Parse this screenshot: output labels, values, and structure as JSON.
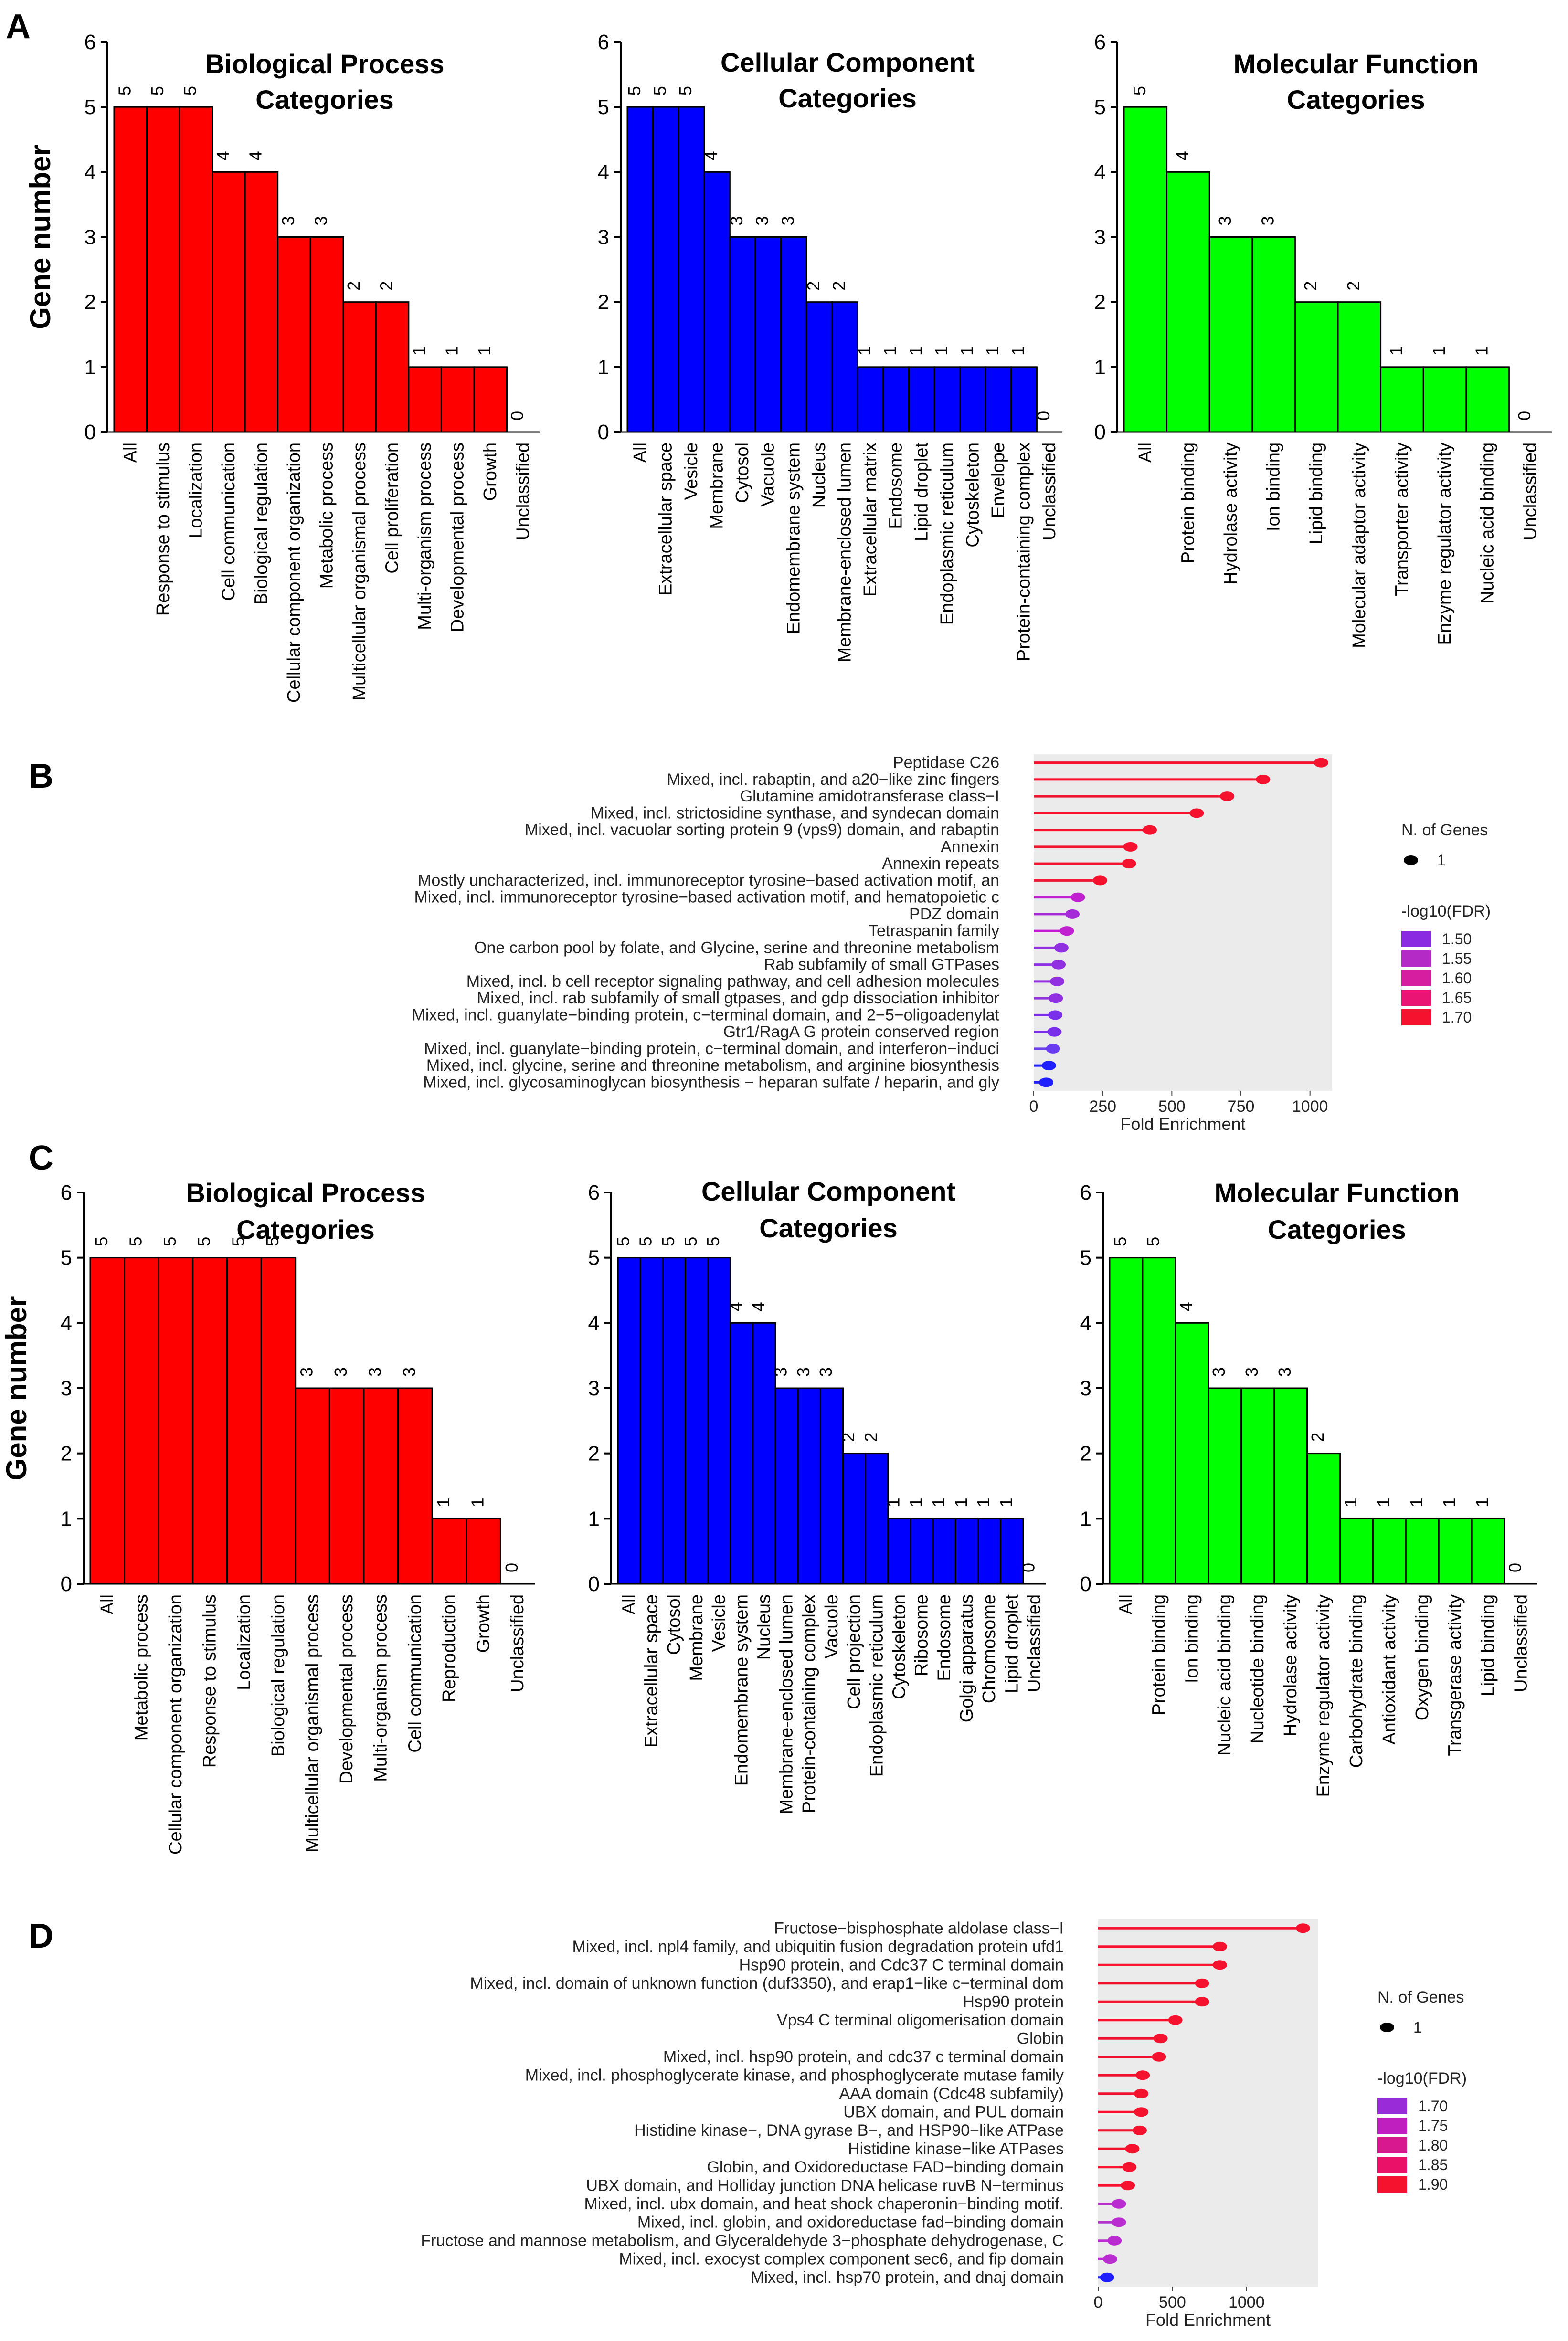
{
  "panels": {
    "A": {
      "letter": "A"
    },
    "B": {
      "letter": "B"
    },
    "C": {
      "letter": "C"
    },
    "D": {
      "letter": "D"
    }
  },
  "chart_data": [
    {
      "id": "A1",
      "type": "bar",
      "panel": "A",
      "color": "#ff0000",
      "title": [
        "Biological Process",
        "Categories"
      ],
      "ylabel": "Gene number",
      "ylim": [
        0,
        6
      ],
      "yticks": [
        0,
        1,
        2,
        3,
        4,
        5,
        6
      ],
      "categories": [
        "All",
        "Response to stimulus",
        "Localization",
        "Cell communication",
        "Biological regulation",
        "Cellular component organization",
        "Metabolic process",
        "Multicellular organismal process",
        "Cell proliferation",
        "Multi-organism process",
        "Developmental process",
        "Growth",
        "Unclassified"
      ],
      "values": [
        5,
        5,
        5,
        4,
        4,
        3,
        3,
        2,
        2,
        1,
        1,
        1,
        0
      ]
    },
    {
      "id": "A2",
      "type": "bar",
      "panel": "A",
      "color": "#0000ff",
      "title": [
        "Cellular Component",
        "Categories"
      ],
      "ylabel": "",
      "ylim": [
        0,
        6
      ],
      "yticks": [
        0,
        1,
        2,
        3,
        4,
        5,
        6
      ],
      "categories": [
        "All",
        "Extracellular space",
        "Vesicle",
        "Membrane",
        "Cytosol",
        "Vacuole",
        "Endomembrane system",
        "Nucleus",
        "Membrane-enclosed lumen",
        "Extracellular matrix",
        "Endosome",
        "Lipid droplet",
        "Endoplasmic reticulum",
        "Cytoskeleton",
        "Envelope",
        "Protein-containing complex",
        "Unclassified"
      ],
      "values": [
        5,
        5,
        5,
        4,
        3,
        3,
        3,
        2,
        2,
        1,
        1,
        1,
        1,
        1,
        1,
        1,
        0
      ]
    },
    {
      "id": "A3",
      "type": "bar",
      "panel": "A",
      "color": "#00ff00",
      "title": [
        "Molecular Function",
        "Categories"
      ],
      "ylabel": "",
      "ylim": [
        0,
        6
      ],
      "yticks": [
        0,
        1,
        2,
        3,
        4,
        5,
        6
      ],
      "categories": [
        "All",
        "Protein binding",
        "Hydrolase activity",
        "Ion binding",
        "Lipid binding",
        "Molecular adaptor activity",
        "Transporter activity",
        "Enzyme regulator activity",
        "Nucleic acid binding",
        "Unclassified"
      ],
      "values": [
        5,
        4,
        3,
        3,
        2,
        2,
        1,
        1,
        1,
        0
      ]
    },
    {
      "id": "B",
      "type": "lollipop",
      "panel": "B",
      "xlabel": "Fold Enrichment",
      "xlim": [
        0,
        1080
      ],
      "xticks": [
        0,
        250,
        500,
        750,
        1000
      ],
      "legend_size_title": "N. of Genes",
      "legend_size_label": "1",
      "legend_color_title": "-log10(FDR)",
      "legend_color_labels": [
        "1.50",
        "1.55",
        "1.60",
        "1.65",
        "1.70"
      ],
      "legend_colors": [
        "#8a2be2",
        "#b32ac6",
        "#d61fa0",
        "#ea1474",
        "#f5122f"
      ],
      "labels": [
        "Peptidase C26",
        "Mixed, incl. rabaptin, and a20−like zinc fingers",
        "Glutamine amidotransferase class−I",
        "Mixed, incl. strictosidine synthase, and syndecan domain",
        "Mixed, incl. vacuolar sorting protein 9 (vps9) domain, and rabaptin",
        "Annexin",
        "Annexin repeats",
        "Mostly uncharacterized, incl. immunoreceptor tyrosine−based activation motif, an",
        "Mixed, incl. immunoreceptor tyrosine−based activation motif, and hematopoietic c",
        "PDZ domain",
        "Tetraspanin family",
        "One carbon pool by folate, and Glycine, serine and threonine metabolism",
        "Rab subfamily of small GTPases",
        "Mixed, incl. b cell receptor signaling pathway, and cell adhesion molecules",
        "Mixed, incl. rab subfamily of small gtpases, and gdp dissociation inhibitor",
        "Mixed, incl. guanylate−binding protein, c−terminal domain, and 2−5−oligoadenylat",
        "Gtr1/RagA G protein conserved region",
        "Mixed, incl. guanylate−binding protein, c−terminal domain, and interferon−induci",
        "Mixed, incl. glycine, serine and threonine metabolism, and arginine biosynthesis",
        "Mixed, incl. glycosaminoglycan biosynthesis − heparan sulfate / heparin, and gly"
      ],
      "values": [
        1040,
        830,
        700,
        590,
        420,
        350,
        345,
        240,
        160,
        140,
        120,
        100,
        90,
        85,
        80,
        78,
        75,
        70,
        55,
        45
      ],
      "colors": [
        "#f5122f",
        "#f5122f",
        "#f5122f",
        "#f5122f",
        "#f5122f",
        "#f5122f",
        "#f5122f",
        "#f5122f",
        "#c020d0",
        "#a52ad8",
        "#c020d0",
        "#9030e0",
        "#9030e0",
        "#9030e0",
        "#9030e0",
        "#7a30e8",
        "#7a30e8",
        "#6a3cf0",
        "#2020ff",
        "#2020ff"
      ]
    },
    {
      "id": "C1",
      "type": "bar",
      "panel": "C",
      "color": "#ff0000",
      "title": [
        "Biological Process",
        "Categories"
      ],
      "ylabel": "Gene number",
      "ylim": [
        0,
        6
      ],
      "yticks": [
        0,
        1,
        2,
        3,
        4,
        5,
        6
      ],
      "categories": [
        "All",
        "Metabolic process",
        "Cellular component organization",
        "Response to stimulus",
        "Localization",
        "Biological regulation",
        "Multicellular organismal process",
        "Developmental process",
        "Multi-organism process",
        "Cell communication",
        "Reproduction",
        "Growth",
        "Unclassified"
      ],
      "values": [
        5,
        5,
        5,
        5,
        5,
        5,
        3,
        3,
        3,
        3,
        1,
        1,
        0
      ]
    },
    {
      "id": "C2",
      "type": "bar",
      "panel": "C",
      "color": "#0000ff",
      "title": [
        "Cellular Component",
        "Categories"
      ],
      "ylabel": "",
      "ylim": [
        0,
        6
      ],
      "yticks": [
        0,
        1,
        2,
        3,
        4,
        5,
        6
      ],
      "categories": [
        "All",
        "Extracellular space",
        "Cytosol",
        "Membrane",
        "Vesicle",
        "Endomembrane system",
        "Nucleus",
        "Membrane-enclosed lumen",
        "Protein-containing complex",
        "Vacuole",
        "Cell projection",
        "Endoplasmic reticulum",
        "Cytoskeleton",
        "Ribosome",
        "Endosome",
        "Golgi apparatus",
        "Chromosome",
        "Lipid droplet",
        "Unclassified"
      ],
      "values": [
        5,
        5,
        5,
        5,
        5,
        4,
        4,
        3,
        3,
        3,
        2,
        2,
        1,
        1,
        1,
        1,
        1,
        1,
        0
      ]
    },
    {
      "id": "C3",
      "type": "bar",
      "panel": "C",
      "color": "#00ff00",
      "title": [
        "Molecular Function",
        "Categories"
      ],
      "ylabel": "",
      "ylim": [
        0,
        6
      ],
      "yticks": [
        0,
        1,
        2,
        3,
        4,
        5,
        6
      ],
      "categories": [
        "All",
        "Protein binding",
        "Ion binding",
        "Nucleic acid binding",
        "Nucleotide binding",
        "Hydrolase activity",
        "Enzyme regulator activity",
        "Carbohydrate binding",
        "Antioxidant activity",
        "Oxygen binding",
        "Transgerase activity",
        "Lipid binding",
        "Unclassified"
      ],
      "values": [
        5,
        5,
        4,
        3,
        3,
        3,
        2,
        1,
        1,
        1,
        1,
        1,
        0
      ]
    },
    {
      "id": "D",
      "type": "lollipop",
      "panel": "D",
      "xlabel": "Fold Enrichment",
      "xlim": [
        0,
        1480
      ],
      "xticks": [
        0,
        500,
        1000
      ],
      "legend_size_title": "N. of Genes",
      "legend_size_label": "1",
      "legend_color_title": "-log10(FDR)",
      "legend_color_labels": [
        "1.70",
        "1.75",
        "1.80",
        "1.85",
        "1.90"
      ],
      "legend_colors": [
        "#9a2bd8",
        "#c01fc0",
        "#d8188f",
        "#ea1268",
        "#f5122f"
      ],
      "labels": [
        "Fructose−bisphosphate aldolase class−I",
        "Mixed, incl. npl4 family, and ubiquitin fusion degradation protein ufd1",
        "Hsp90 protein, and Cdc37 C terminal domain",
        "Mixed, incl. domain of unknown function (duf3350), and erap1−like c−terminal dom",
        "Hsp90 protein",
        "Vps4 C terminal oligomerisation domain",
        "Globin",
        "Mixed, incl. hsp90 protein, and cdc37 c terminal domain",
        "Mixed, incl. phosphoglycerate kinase, and phosphoglycerate mutase family",
        "AAA domain (Cdc48 subfamily)",
        "UBX domain, and PUL domain",
        "Histidine kinase−, DNA gyrase B−, and HSP90−like ATPase",
        "Histidine kinase−like ATPases",
        "Globin, and Oxidoreductase FAD−binding domain",
        "UBX domain, and Holliday junction DNA helicase ruvB N−terminus",
        "Mixed, incl. ubx domain, and heat shock chaperonin−binding motif.",
        "Mixed, incl. globin, and oxidoreductase fad−binding domain",
        "Fructose and mannose metabolism, and Glyceraldehyde 3−phosphate dehydrogenase, C",
        "Mixed, incl. exocyst complex component sec6, and fip domain",
        "Mixed, incl. hsp70 protein, and dnaj domain"
      ],
      "values": [
        1380,
        820,
        820,
        700,
        700,
        520,
        420,
        410,
        300,
        290,
        290,
        280,
        230,
        210,
        200,
        140,
        140,
        110,
        80,
        60
      ],
      "colors": [
        "#f5122f",
        "#f5122f",
        "#f5122f",
        "#f5122f",
        "#f5122f",
        "#f5122f",
        "#f5122f",
        "#f5122f",
        "#f5122f",
        "#f5122f",
        "#f5122f",
        "#f5122f",
        "#f5122f",
        "#f5122f",
        "#f5122f",
        "#b82cd0",
        "#b82cd0",
        "#b82cd0",
        "#b82cd0",
        "#2020ff"
      ]
    }
  ]
}
